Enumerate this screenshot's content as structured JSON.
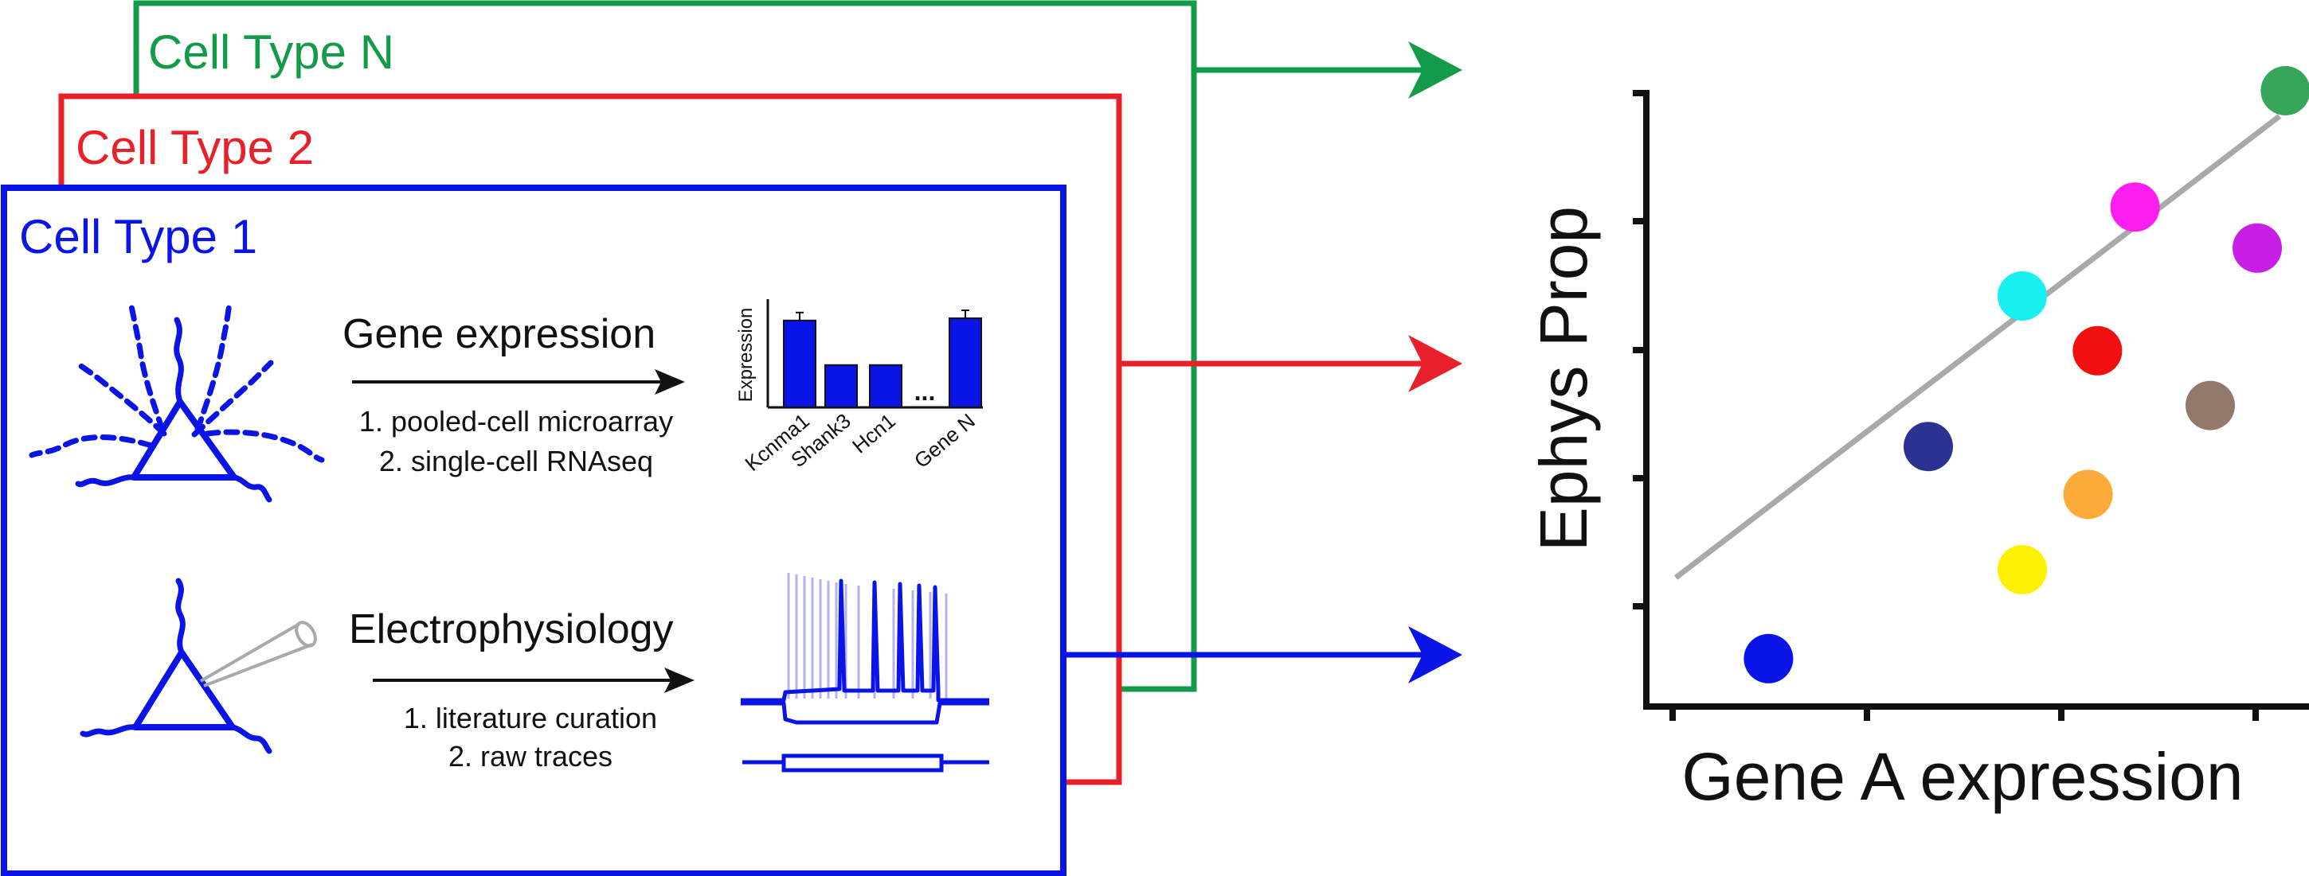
{
  "colors": {
    "blue": "#0a14e6",
    "red": "#e8202a",
    "green": "#119b4a",
    "black": "#111111",
    "gray": "#a9a9a9",
    "trace_light": "#b5b2ee"
  },
  "panels": {
    "type_n_label": "Cell Type N",
    "type_2_label": "Cell Type 2",
    "type_1_label": "Cell Type 1"
  },
  "gene_expression": {
    "title": "Gene expression",
    "method_1": "1. pooled-cell microarray",
    "method_2": "2. single-cell RNAseq"
  },
  "electrophysiology": {
    "title": "Electrophysiology",
    "method_1": "1. literature curation",
    "method_2": "2. raw traces"
  },
  "bar_chart": {
    "ylabel": "Expression",
    "ellipsis": "...",
    "bars": [
      {
        "label": "Kcnma1",
        "value": 0.78
      },
      {
        "label": "Shank3",
        "value": 0.38
      },
      {
        "label": "Hcn1",
        "value": 0.38
      },
      {
        "label": "Gene N",
        "value": 0.8
      }
    ]
  },
  "scatter": {
    "xlabel": "Gene A expression",
    "ylabel": "Ephys Prop",
    "points": [
      {
        "x": 0.13,
        "y": 0.07,
        "color": "#0a14e6"
      },
      {
        "x": 0.68,
        "y": 0.9,
        "color": "#37a55a"
      },
      {
        "x": 0.3,
        "y": 0.38,
        "color": "#2b3291"
      },
      {
        "x": 0.4,
        "y": 0.2,
        "color": "#fff000"
      },
      {
        "x": 0.4,
        "y": 0.6,
        "color": "#18f0f0"
      },
      {
        "x": 0.52,
        "y": 0.73,
        "color": "#ff1ef0"
      },
      {
        "x": 0.48,
        "y": 0.52,
        "color": "#f01010"
      },
      {
        "x": 0.47,
        "y": 0.31,
        "color": "#fbab3a"
      },
      {
        "x": 0.6,
        "y": 0.44,
        "color": "#93786c"
      },
      {
        "x": 0.65,
        "y": 0.67,
        "color": "#c81ee6"
      }
    ]
  }
}
